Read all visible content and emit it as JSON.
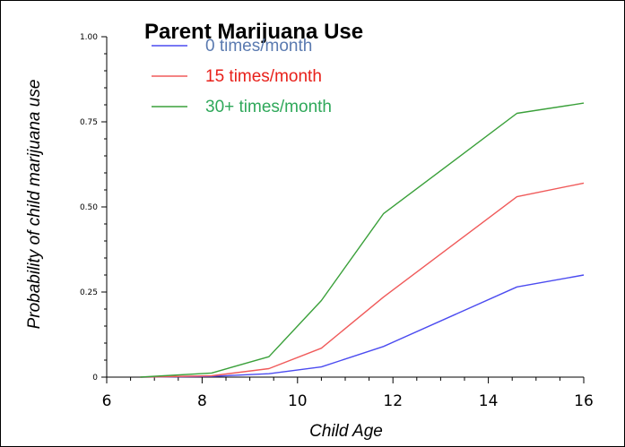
{
  "chart_data": {
    "type": "line",
    "title": "",
    "xlabel": "Child Age",
    "ylabel": "Probability of child marijuana use",
    "xlim": [
      6,
      16
    ],
    "ylim": [
      0,
      1
    ],
    "x_ticks": [
      "6",
      "8",
      "10",
      "12",
      "14",
      "16"
    ],
    "y_ticks": [
      "0",
      "0.25",
      "0.50",
      "0.75",
      "1.00"
    ],
    "legend": {
      "title": "Parent Marijuana Use",
      "placement": "top-left"
    },
    "grid": false,
    "series": [
      {
        "name": "0 times/month",
        "color": "#4b4bf0",
        "text_color": "#5a7ab0",
        "x": [
          6.7,
          8.2,
          9.4,
          10.5,
          11.8,
          14.6,
          16
        ],
        "y": [
          0,
          0.002,
          0.01,
          0.03,
          0.09,
          0.265,
          0.3
        ]
      },
      {
        "name": "15 times/month",
        "color": "#f05a5a",
        "text_color": "#e8201a",
        "x": [
          6.7,
          8.2,
          9.4,
          10.5,
          11.8,
          14.6,
          16
        ],
        "y": [
          0,
          0.004,
          0.025,
          0.085,
          0.235,
          0.53,
          0.57
        ]
      },
      {
        "name": "30+ times/month",
        "color": "#3aa03a",
        "text_color": "#2fa85a",
        "x": [
          6.7,
          8.2,
          9.4,
          10.5,
          11.8,
          14.6,
          16
        ],
        "y": [
          0,
          0.012,
          0.06,
          0.225,
          0.48,
          0.775,
          0.805
        ]
      }
    ]
  }
}
